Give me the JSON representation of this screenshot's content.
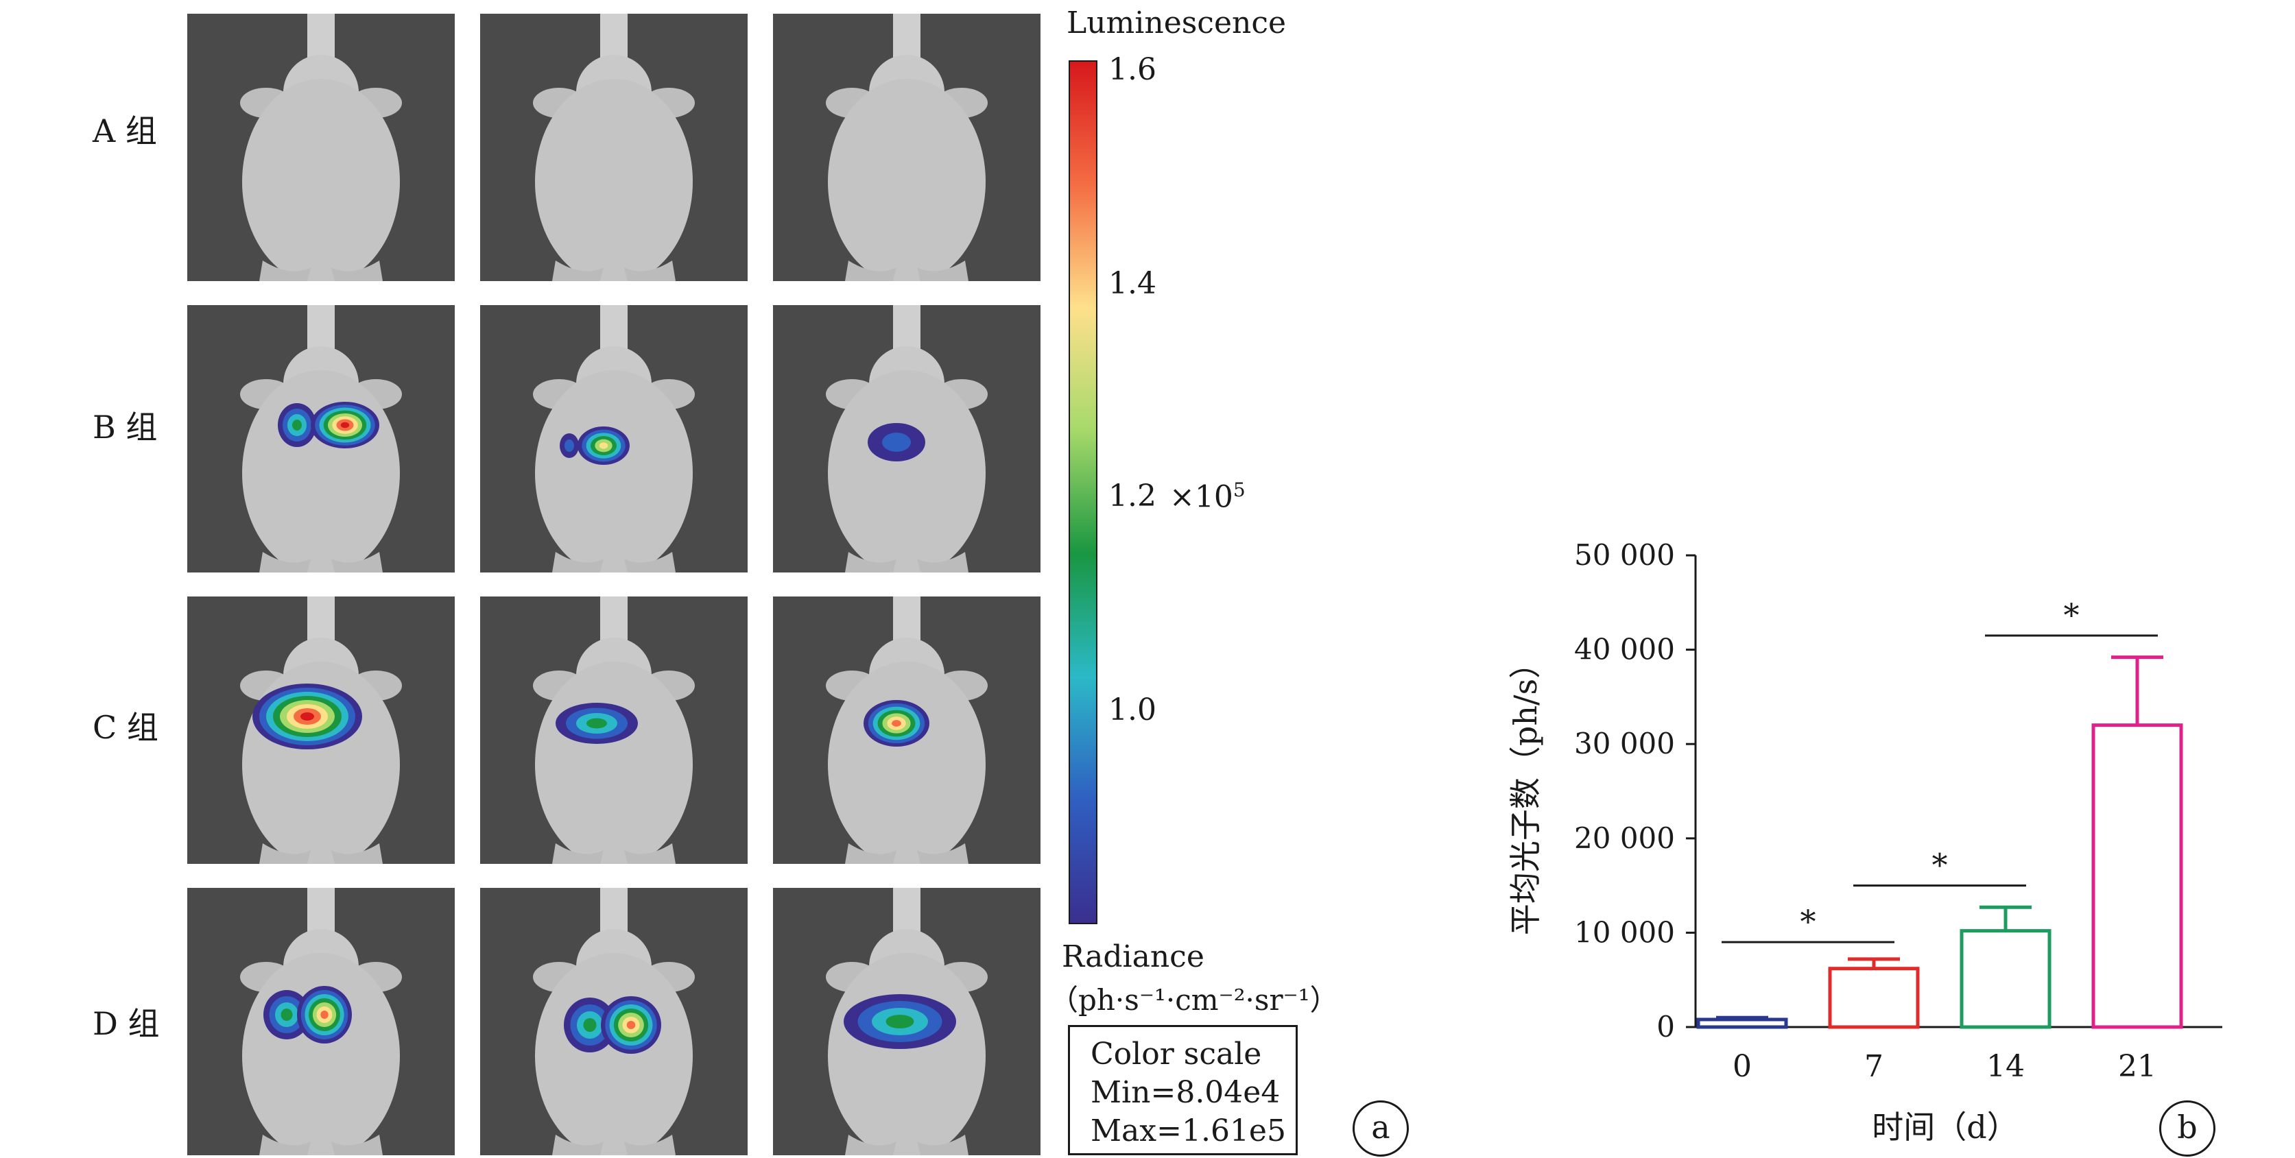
{
  "panel_a": {
    "row_labels": [
      "A 组",
      "B 组",
      "C 组",
      "D 组"
    ],
    "colorbar": {
      "title": "Luminescence",
      "ticks": [
        "1.6",
        "1.4",
        "1.2",
        "1.0"
      ],
      "multiplier": "×10",
      "multiplier_exp": "5",
      "unit_label": "Radiance",
      "unit_formula": "（ph·s⁻¹·cm⁻²·sr⁻¹）",
      "colors": [
        "#d7191c",
        "#f46d43",
        "#fee08b",
        "#a6d96a",
        "#1a9641",
        "#2bb9c7",
        "#2f5fc1",
        "#3a2f8f"
      ]
    },
    "color_scale": {
      "title": "Color scale",
      "min": "Min=8.04e4",
      "max": "Max=1.61e5"
    },
    "label": "a"
  },
  "panel_b": {
    "label": "b",
    "chart_data": {
      "type": "bar",
      "categories": [
        "0",
        "7",
        "14",
        "21"
      ],
      "values": [
        800,
        6200,
        10200,
        32000
      ],
      "error_upper": [
        1000,
        7200,
        12700,
        39200
      ],
      "colors": [
        "#2a3990",
        "#e02b2b",
        "#1c9c5e",
        "#e0218a"
      ],
      "ylabel": "平均光子数（ph/s）",
      "xlabel": "时间（d）",
      "ylim": [
        0,
        50000
      ],
      "yticks": [
        0,
        10000,
        20000,
        30000,
        40000,
        50000
      ],
      "ytick_labels": [
        "0",
        "10 000",
        "20 000",
        "30 000",
        "40 000",
        "50 000"
      ],
      "significance": [
        {
          "from": "0",
          "to": "7",
          "mark": "*",
          "y": 9000
        },
        {
          "from": "7",
          "to": "14",
          "mark": "*",
          "y": 15000
        },
        {
          "from": "14",
          "to": "21",
          "mark": "*",
          "y": 41500
        }
      ]
    }
  }
}
